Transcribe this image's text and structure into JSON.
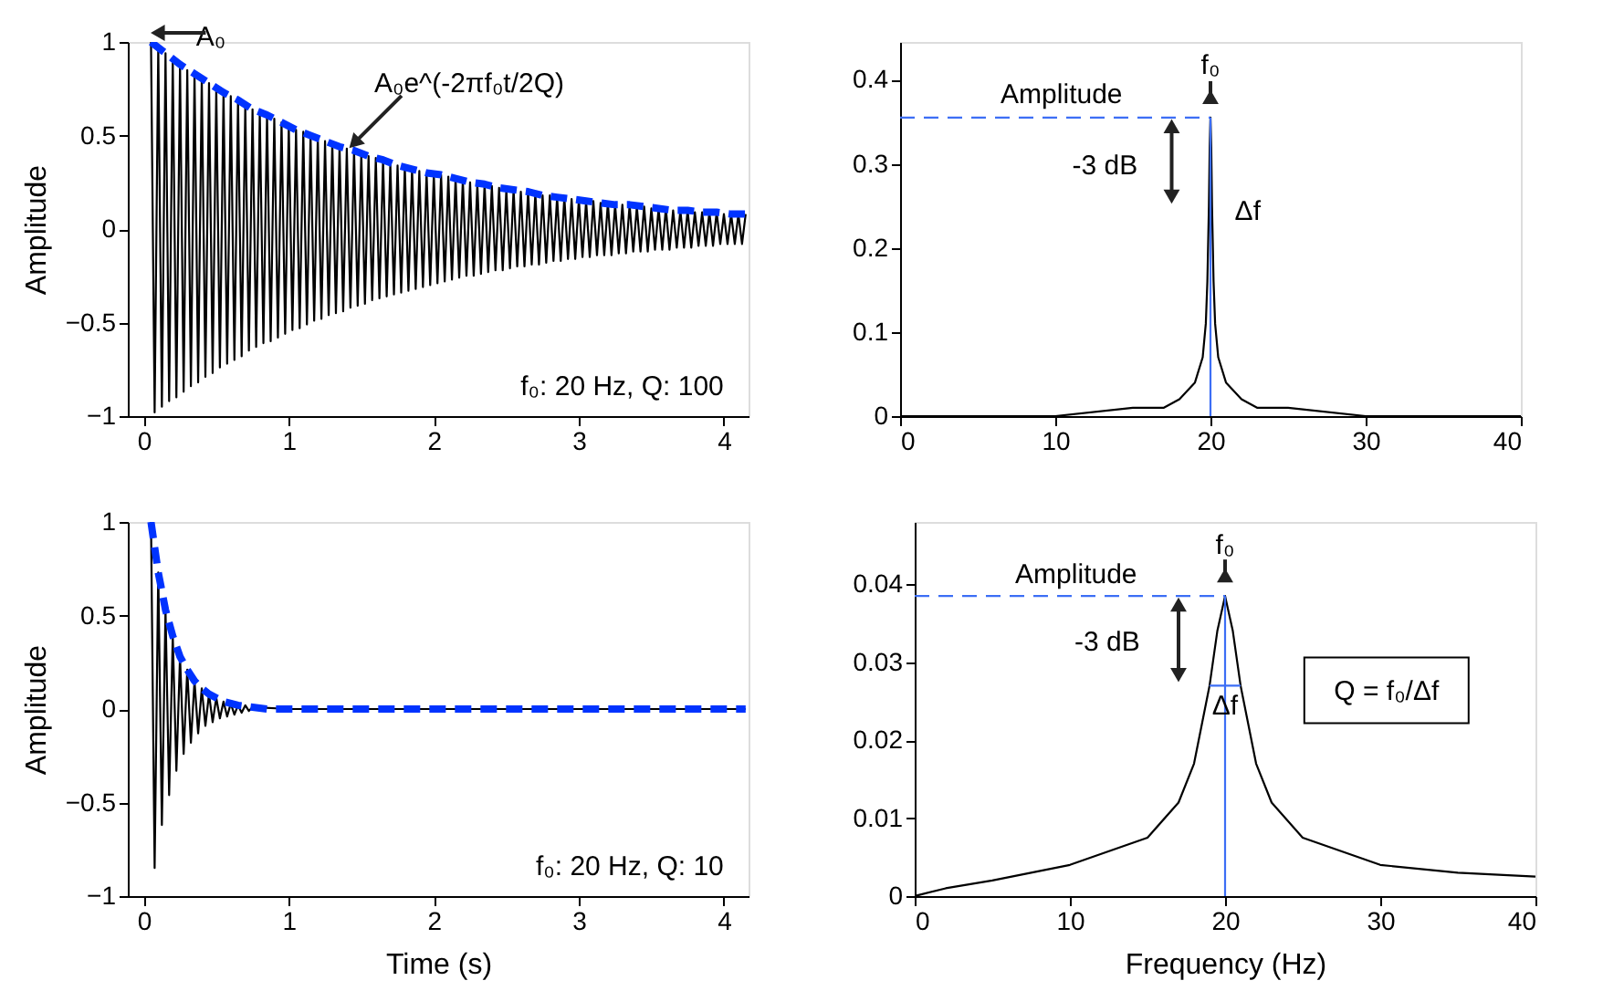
{
  "chart_data": [
    {
      "type": "line",
      "ylabel": "Amplitude",
      "xlim": [
        -0.11,
        4.17
      ],
      "xticks": [
        0,
        1,
        2,
        3,
        4
      ],
      "ylim": [
        -1,
        1
      ],
      "yticks": [
        -1,
        -0.5,
        0,
        0.5,
        1
      ],
      "grid": false,
      "series": [
        {
          "color": "#000000",
          "line_style": "solid",
          "x": [
            0.05,
            0.075,
            0.1,
            0.125,
            0.15,
            0.175,
            0.2,
            0.225,
            0.25,
            0.275,
            0.3,
            0.325,
            0.35,
            0.375,
            0.4,
            0.425,
            0.45,
            0.475,
            0.5,
            0.525,
            0.55,
            0.575,
            0.6,
            0.625,
            0.65,
            0.675,
            0.7,
            0.725,
            0.75,
            0.775,
            0.8,
            0.825,
            0.85,
            0.875,
            0.9,
            0.925,
            0.95,
            0.975,
            1.0,
            1.025,
            1.05,
            1.075,
            1.1,
            1.125,
            1.15,
            1.175,
            1.2,
            1.225,
            1.25,
            1.275,
            1.3,
            1.325,
            1.35,
            1.375,
            1.4,
            1.425,
            1.45,
            1.475,
            1.5,
            1.525,
            1.55,
            1.575,
            1.6,
            1.625,
            1.65,
            1.675,
            1.7,
            1.725,
            1.75,
            1.775,
            1.8,
            1.825,
            1.85,
            1.875,
            1.9,
            1.925,
            1.95,
            1.975,
            2.0,
            2.025,
            2.05,
            2.075,
            2.1,
            2.125,
            2.15,
            2.175,
            2.2,
            2.225,
            2.25,
            2.275,
            2.3,
            2.325,
            2.35,
            2.375,
            2.4,
            2.425,
            2.45,
            2.475,
            2.5,
            2.525,
            2.55,
            2.575,
            2.6,
            2.625,
            2.65,
            2.675,
            2.7,
            2.725,
            2.75,
            2.775,
            2.8,
            2.825,
            2.85,
            2.875,
            2.9,
            2.925,
            2.95,
            2.975,
            3.0,
            3.025,
            3.05,
            3.075,
            3.1,
            3.125,
            3.15,
            3.175,
            3.2,
            3.225,
            3.25,
            3.275,
            3.3,
            3.325,
            3.35,
            3.375,
            3.4,
            3.425,
            3.45,
            3.475,
            3.5,
            3.525,
            3.55,
            3.575,
            3.6,
            3.625,
            3.65,
            3.675,
            3.7,
            3.725,
            3.75,
            3.775,
            3.8,
            3.825,
            3.85,
            3.875,
            3.9,
            3.925,
            3.95,
            3.975,
            4.0,
            4.025,
            4.05,
            4.075,
            4.1,
            4.125,
            4.15
          ],
          "values": [
            1.0,
            -0.98,
            0.97,
            -0.95,
            0.94,
            -0.92,
            0.91,
            -0.9,
            0.88,
            -0.87,
            0.85,
            -0.84,
            0.83,
            -0.82,
            0.8,
            -0.79,
            0.78,
            -0.77,
            0.75,
            -0.74,
            0.73,
            -0.72,
            0.71,
            -0.7,
            0.69,
            -0.68,
            0.66,
            -0.65,
            0.64,
            -0.63,
            0.62,
            -0.61,
            0.61,
            -0.6,
            0.59,
            -0.58,
            0.57,
            -0.56,
            0.55,
            -0.54,
            0.53,
            -0.53,
            0.52,
            -0.51,
            0.5,
            -0.49,
            0.49,
            -0.48,
            0.47,
            -0.46,
            0.46,
            -0.45,
            0.44,
            -0.44,
            0.43,
            -0.42,
            0.42,
            -0.41,
            0.4,
            -0.4,
            0.39,
            -0.38,
            0.38,
            -0.37,
            0.37,
            -0.36,
            0.35,
            -0.35,
            0.34,
            -0.34,
            0.33,
            -0.33,
            0.32,
            -0.32,
            0.31,
            -0.31,
            0.3,
            -0.3,
            0.29,
            -0.29,
            0.29,
            -0.28,
            0.28,
            -0.27,
            0.27,
            -0.26,
            0.26,
            -0.25,
            0.25,
            -0.25,
            0.24,
            -0.24,
            0.24,
            -0.23,
            0.23,
            -0.22,
            0.22,
            -0.22,
            0.21,
            -0.21,
            0.21,
            -0.2,
            0.2,
            -0.2,
            0.2,
            -0.19,
            0.19,
            -0.19,
            0.18,
            -0.18,
            0.18,
            -0.17,
            0.17,
            -0.17,
            0.17,
            -0.16,
            0.16,
            -0.16,
            0.16,
            -0.15,
            0.15,
            -0.15,
            0.15,
            -0.14,
            0.14,
            -0.14,
            0.14,
            -0.14,
            0.13,
            -0.13,
            0.13,
            -0.13,
            0.13,
            -0.12,
            0.12,
            -0.12,
            0.12,
            -0.12,
            0.11,
            -0.11,
            0.11,
            -0.11,
            0.11,
            -0.11,
            0.1,
            -0.1,
            0.1,
            -0.1,
            0.1,
            -0.1,
            0.09,
            -0.09,
            0.09,
            -0.09,
            0.09,
            -0.09,
            0.09,
            -0.08,
            0.08,
            -0.08,
            0.08,
            -0.08,
            0.08,
            -0.08,
            0.08
          ]
        },
        {
          "color": "#0033ff",
          "line_style": "dashed",
          "x": [
            0.05,
            0.15,
            0.25,
            0.35,
            0.45,
            0.55,
            0.65,
            0.75,
            0.85,
            0.95,
            1.05,
            1.15,
            1.25,
            1.35,
            1.45,
            1.55,
            1.65,
            1.75,
            1.85,
            1.95,
            2.05,
            2.15,
            2.25,
            2.35,
            2.45,
            2.55,
            2.65,
            2.75,
            2.85,
            2.95,
            3.05,
            3.15,
            3.25,
            3.35,
            3.45,
            3.55,
            3.65,
            3.75,
            3.85,
            3.95,
            4.05,
            4.15
          ],
          "values": [
            1.0,
            0.94,
            0.88,
            0.83,
            0.78,
            0.73,
            0.69,
            0.64,
            0.61,
            0.57,
            0.53,
            0.5,
            0.47,
            0.44,
            0.42,
            0.39,
            0.37,
            0.34,
            0.32,
            0.3,
            0.29,
            0.27,
            0.25,
            0.24,
            0.22,
            0.21,
            0.2,
            0.18,
            0.17,
            0.16,
            0.15,
            0.14,
            0.13,
            0.13,
            0.12,
            0.11,
            0.1,
            0.1,
            0.09,
            0.09,
            0.08,
            0.08
          ]
        }
      ],
      "annotations": [
        {
          "text": "A₀",
          "x": 0.05,
          "y": 1
        },
        {
          "text": "A₀e^(-2πf₀t/2Q)",
          "x": 1.4,
          "y": 0.42
        },
        "f₀: 20 Hz, Q: 100"
      ]
    },
    {
      "type": "line",
      "xlim": [
        0,
        40
      ],
      "xticks": [
        0,
        10,
        20,
        30,
        40
      ],
      "ylim": [
        0,
        0.445
      ],
      "yticks": [
        0,
        0.1,
        0.2,
        0.3,
        0.4
      ],
      "grid": false,
      "series": [
        {
          "color": "#000000",
          "line_style": "solid",
          "x": [
            0,
            5,
            10,
            15,
            17,
            18,
            19,
            19.5,
            19.7,
            19.8,
            19.9,
            19.95,
            20,
            20.05,
            20.1,
            20.2,
            20.3,
            20.5,
            21,
            22,
            23,
            25,
            30,
            35,
            40
          ],
          "values": [
            0.0,
            0.0,
            0.0,
            0.01,
            0.01,
            0.02,
            0.04,
            0.07,
            0.11,
            0.16,
            0.25,
            0.32,
            0.355,
            0.32,
            0.25,
            0.16,
            0.11,
            0.07,
            0.04,
            0.02,
            0.01,
            0.01,
            0.0,
            0.0,
            0.0
          ]
        },
        {
          "color": "#3c6ef5",
          "line_style": "dashed",
          "x": [
            0,
            20
          ],
          "values": [
            0.355,
            0.355
          ]
        },
        {
          "color": "#3c6ef5",
          "line_style": "solid",
          "x": [
            20,
            20
          ],
          "values": [
            0,
            0.355
          ]
        }
      ],
      "annotations": [
        "Amplitude",
        {
          "text": "f₀",
          "x": 20,
          "y": 0.355
        },
        {
          "text": "-3 dB",
          "x": 17.5,
          "y": 0.355
        },
        "Δf"
      ]
    },
    {
      "type": "line",
      "xlabel": "Time (s)",
      "ylabel": "Amplitude",
      "xlim": [
        -0.11,
        4.17
      ],
      "xticks": [
        0,
        1,
        2,
        3,
        4
      ],
      "ylim": [
        -1,
        1
      ],
      "yticks": [
        -1,
        -0.5,
        0,
        0.5,
        1
      ],
      "grid": false,
      "series": [
        {
          "color": "#000000",
          "line_style": "solid",
          "x": [
            0.05,
            0.075,
            0.1,
            0.125,
            0.15,
            0.175,
            0.2,
            0.225,
            0.25,
            0.275,
            0.3,
            0.325,
            0.35,
            0.375,
            0.4,
            0.425,
            0.45,
            0.475,
            0.5,
            0.525,
            0.55,
            0.575,
            0.6,
            0.625,
            0.65,
            0.675,
            0.7,
            0.725,
            0.75,
            1.0,
            4.15
          ],
          "values": [
            1.0,
            -0.85,
            0.73,
            -0.62,
            0.53,
            -0.46,
            0.39,
            -0.33,
            0.28,
            -0.24,
            0.21,
            -0.18,
            0.15,
            -0.13,
            0.11,
            -0.09,
            0.08,
            -0.07,
            0.06,
            -0.05,
            0.04,
            -0.04,
            0.03,
            -0.03,
            0.02,
            -0.02,
            0.02,
            -0.01,
            0.01,
            0,
            0
          ]
        },
        {
          "color": "#0033ff",
          "line_style": "dashed",
          "x": [
            0.05,
            0.1,
            0.15,
            0.2,
            0.25,
            0.3,
            0.35,
            0.4,
            0.45,
            0.5,
            0.55,
            0.65,
            0.75,
            0.85,
            4.15
          ],
          "values": [
            1.0,
            0.73,
            0.53,
            0.39,
            0.28,
            0.21,
            0.15,
            0.11,
            0.08,
            0.06,
            0.04,
            0.02,
            0.01,
            0.0,
            0.0
          ]
        }
      ],
      "annotations": [
        "f₀: 20 Hz, Q: 10"
      ]
    },
    {
      "type": "line",
      "xlabel": "Frequency (Hz)",
      "xlim": [
        0,
        40
      ],
      "xticks": [
        0,
        10,
        20,
        30,
        40
      ],
      "ylim": [
        0,
        0.048
      ],
      "yticks": [
        0,
        0.01,
        0.02,
        0.03,
        0.04
      ],
      "grid": false,
      "series": [
        {
          "color": "#000000",
          "line_style": "solid",
          "x": [
            0,
            2,
            5,
            10,
            15,
            17,
            18,
            19,
            19.5,
            20,
            20.5,
            21,
            22,
            23,
            25,
            30,
            35,
            40
          ],
          "values": [
            0.0,
            0.001,
            0.002,
            0.004,
            0.0075,
            0.012,
            0.017,
            0.027,
            0.034,
            0.0385,
            0.034,
            0.027,
            0.017,
            0.012,
            0.0075,
            0.004,
            0.003,
            0.0025
          ]
        },
        {
          "color": "#3c6ef5",
          "line_style": "dashed",
          "x": [
            0,
            20
          ],
          "values": [
            0.0385,
            0.0385
          ]
        },
        {
          "color": "#3c6ef5",
          "line_style": "solid",
          "x": [
            20,
            20
          ],
          "values": [
            0,
            0.0385
          ]
        },
        {
          "color": "#3c6ef5",
          "line_style": "solid",
          "x": [
            19,
            21
          ],
          "values": [
            0.027,
            0.027
          ]
        }
      ],
      "annotations": [
        "Amplitude",
        {
          "text": "f₀",
          "x": 20,
          "y": 0.0385
        },
        {
          "text": "-3 dB",
          "x": 17,
          "y": 0.0385
        },
        {
          "text": "Δf",
          "x": 20,
          "y": 0.027
        },
        "Q = f₀/Δf"
      ]
    }
  ]
}
